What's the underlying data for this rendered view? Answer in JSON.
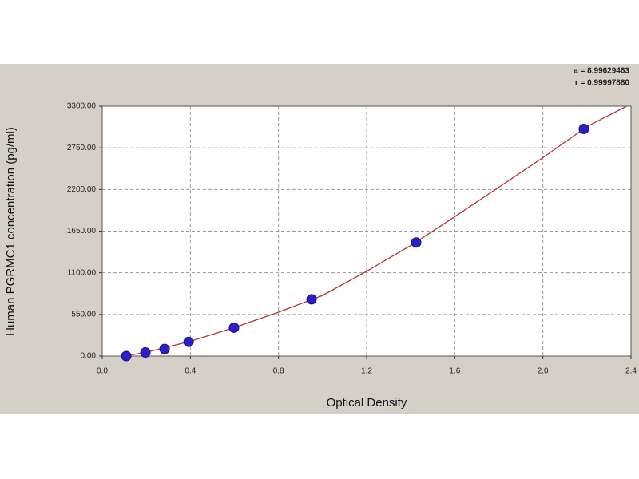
{
  "chart_data": {
    "type": "scatter",
    "x_label": "Optical Density",
    "y_label": "Human PGRMC1 concentration (pg/ml)",
    "annotations": [
      "a = 8.99629463",
      "r = 0.99997880"
    ],
    "x": [
      0.109,
      0.196,
      0.283,
      0.392,
      0.598,
      0.95,
      1.425,
      2.186
    ],
    "values": [
      0,
      46.88,
      93.75,
      187.5,
      375,
      750,
      1500,
      3000
    ],
    "color": "#2a1fc8",
    "fit": {
      "color": "#b03535",
      "x": [
        0.1,
        0.2,
        0.4,
        0.6,
        0.8,
        1.0,
        1.2,
        1.4,
        1.6,
        1.8,
        2.0,
        2.2,
        2.38
      ],
      "values": [
        0,
        50,
        195,
        377,
        580,
        800,
        1120,
        1460,
        1840,
        2230,
        2620,
        3030,
        3300
      ]
    },
    "xlim": [
      0,
      2.4
    ],
    "xticks": [
      {
        "value": 0,
        "label": "0.0"
      },
      0.4,
      0.8,
      1.2,
      1.6,
      {
        "value": 2,
        "label": "2.0"
      },
      2.4
    ],
    "ylim": [
      0,
      3300
    ],
    "yticks": [
      {
        "value": 0,
        "label": "0.00"
      },
      {
        "value": 550,
        "label": "550.00"
      },
      {
        "value": 1100,
        "label": "1100.00"
      },
      {
        "value": 1650,
        "label": "1650.00"
      },
      {
        "value": 2200,
        "label": "2200.00"
      },
      {
        "value": 2750,
        "label": "2750.00"
      },
      {
        "value": 3300,
        "label": "3300.00"
      }
    ],
    "grid": true
  }
}
